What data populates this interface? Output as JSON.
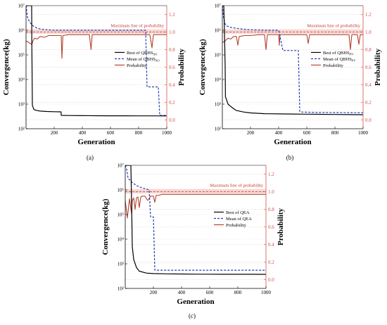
{
  "chart_data": [
    {
      "type": "line",
      "panel_label": "(a)",
      "xlabel": "Generation",
      "ylabel": "Convergence(kg)",
      "y2label": "Probability",
      "xlim": [
        0,
        1000
      ],
      "ylim_log10": [
        2,
        7
      ],
      "y2lim": [
        -0.1,
        1.3
      ],
      "x_ticks": [
        "200",
        "400",
        "600",
        "800",
        "1000"
      ],
      "y_ticks": [
        "10²",
        "10³",
        "10⁴",
        "10⁵",
        "10⁶",
        "10⁷"
      ],
      "y2_ticks": [
        "0.0",
        "0.2",
        "0.4",
        "0.6",
        "0.8",
        "1.0",
        "1.2"
      ],
      "max_line_label": "Maximum line of probability",
      "max_line_value": 1.0,
      "legend": [
        "Best of QBHS_SO",
        "Mean of QBHS_SO",
        "Probability"
      ],
      "series": [
        {
          "name": "Best of QBHS_SO",
          "color": "#000000",
          "dash": false,
          "axis": "left",
          "x": [
            0,
            10,
            20,
            30,
            40,
            41,
            45,
            55,
            70,
            100,
            150,
            200,
            249,
            250,
            300,
            400,
            500,
            600,
            700,
            800,
            900,
            1000
          ],
          "y": [
            10000000,
            10000000,
            10000000,
            10000000,
            10000000,
            400000,
            900,
            620,
            560,
            520,
            500,
            490,
            485,
            350,
            345,
            340,
            338,
            336,
            335,
            334,
            333,
            332
          ]
        },
        {
          "name": "Mean of QBHS_SO",
          "color": "#1f3fb4",
          "dash": true,
          "axis": "left",
          "x": [
            0,
            10,
            20,
            30,
            50,
            80,
            110,
            150,
            200,
            300,
            400,
            500,
            600,
            700,
            800,
            850,
            860,
            940,
            950,
            1000
          ],
          "y": [
            10000000,
            3500000,
            2500000,
            2000000,
            1500000,
            1200000,
            1100000,
            1050000,
            1000000,
            1000000,
            1000000,
            1000000,
            1000000,
            1000000,
            1000000,
            1000000,
            5000,
            5000,
            350,
            350
          ]
        },
        {
          "name": "Probability",
          "color": "#b5432f",
          "dash": false,
          "axis": "right",
          "x": [
            0,
            20,
            40,
            50,
            60,
            80,
            100,
            130,
            160,
            200,
            230,
            250,
            255,
            262,
            300,
            350,
            400,
            450,
            462,
            470,
            500,
            550,
            600,
            700,
            800,
            880,
            895,
            905,
            950,
            1000
          ],
          "y": [
            0.9,
            0.88,
            0.86,
            0.9,
            0.93,
            0.92,
            0.95,
            0.94,
            0.96,
            0.96,
            0.96,
            0.96,
            0.7,
            0.96,
            0.97,
            0.97,
            0.97,
            0.97,
            0.8,
            0.97,
            0.97,
            0.97,
            0.97,
            0.97,
            0.97,
            0.97,
            0.82,
            0.97,
            0.97,
            0.97
          ]
        }
      ]
    },
    {
      "type": "line",
      "panel_label": "(b)",
      "xlabel": "Generation",
      "ylabel": "Convergence(kg)",
      "y2label": "Probability",
      "xlim": [
        0,
        1000
      ],
      "ylim_log10": [
        2,
        7
      ],
      "y2lim": [
        -0.1,
        1.3
      ],
      "x_ticks": [
        "200",
        "400",
        "600",
        "800",
        "1000"
      ],
      "y_ticks": [
        "10²",
        "10³",
        "10⁴",
        "10⁵",
        "10⁶",
        "10⁷"
      ],
      "y2_ticks": [
        "0.0",
        "0.2",
        "0.4",
        "0.6",
        "0.8",
        "1.0",
        "1.2"
      ],
      "max_line_label": "Maximum line of probability",
      "max_line_value": 1.0,
      "legend": [
        "Best of QBHS_PV",
        "Mean of QBHS_PV",
        "Probability"
      ],
      "series": [
        {
          "name": "Best of QBHS_PV",
          "color": "#000000",
          "dash": false,
          "axis": "left",
          "x": [
            0,
            10,
            15,
            20,
            22,
            30,
            40,
            60,
            80,
            100,
            150,
            200,
            300,
            400,
            500,
            600,
            700,
            800,
            900,
            1000
          ],
          "y": [
            10000000,
            10000000,
            1000000,
            30000,
            2000,
            1500,
            1000,
            800,
            650,
            550,
            480,
            440,
            410,
            400,
            395,
            390,
            385,
            380,
            375,
            370
          ]
        },
        {
          "name": "Mean of QBHS_PV",
          "color": "#1f3fb4",
          "dash": true,
          "axis": "left",
          "x": [
            0,
            10,
            20,
            30,
            60,
            100,
            150,
            200,
            300,
            400,
            420,
            430,
            500,
            540,
            550,
            560,
            600,
            700,
            800,
            900,
            1000
          ],
          "y": [
            10000000,
            3000000,
            1800000,
            1500000,
            1300000,
            1200000,
            1100000,
            1050000,
            1000000,
            1000000,
            300000,
            150000,
            150000,
            150000,
            500,
            480,
            470,
            460,
            455,
            450,
            445
          ]
        },
        {
          "name": "Probability",
          "color": "#b5432f",
          "dash": false,
          "axis": "right",
          "x": [
            0,
            20,
            40,
            60,
            80,
            100,
            110,
            120,
            160,
            200,
            260,
            300,
            310,
            320,
            350,
            400,
            405,
            410,
            450,
            500,
            600,
            610,
            620,
            700,
            800,
            900,
            910,
            920,
            960,
            970,
            980,
            1000
          ],
          "y": [
            0.88,
            0.9,
            0.93,
            0.92,
            0.95,
            0.95,
            0.85,
            0.95,
            0.96,
            0.96,
            0.97,
            0.97,
            0.8,
            0.97,
            0.97,
            0.97,
            0.85,
            0.97,
            0.97,
            0.97,
            0.97,
            0.87,
            0.97,
            0.97,
            0.97,
            0.97,
            0.8,
            0.97,
            0.97,
            0.86,
            0.97,
            0.97
          ]
        }
      ]
    },
    {
      "type": "line",
      "panel_label": "(c)",
      "xlabel": "Generation",
      "ylabel": "Convergence(kg)",
      "y2label": "Probability",
      "xlim": [
        0,
        1000
      ],
      "ylim_log10": [
        2,
        7
      ],
      "y2lim": [
        -0.1,
        1.3
      ],
      "x_ticks": [
        "200",
        "400",
        "600",
        "800",
        "1000"
      ],
      "y_ticks": [
        "10²",
        "10³",
        "10⁴",
        "10⁵",
        "10⁶",
        "10⁷"
      ],
      "y2_ticks": [
        "0.0",
        "0.2",
        "0.4",
        "0.6",
        "0.8",
        "1.0",
        "1.2"
      ],
      "max_line_label": "Maximum line of probability",
      "max_line_value": 1.0,
      "legend": [
        "Best of QEA",
        "Mean of QEA",
        "Probability"
      ],
      "series": [
        {
          "name": "Best of QEA",
          "color": "#000000",
          "dash": false,
          "axis": "left",
          "x": [
            0,
            20,
            30,
            40,
            45,
            50,
            60,
            80,
            100,
            150,
            200,
            300,
            400,
            500,
            600,
            700,
            800,
            900,
            1000
          ],
          "y": [
            10000000,
            10000000,
            10000000,
            10000000,
            300000,
            5000,
            1500,
            700,
            500,
            420,
            400,
            390,
            385,
            380,
            378,
            376,
            375,
            374,
            373
          ]
        },
        {
          "name": "Mean of QEA",
          "color": "#1f3fb4",
          "dash": true,
          "axis": "left",
          "x": [
            0,
            10,
            20,
            50,
            80,
            120,
            150,
            170,
            180,
            200,
            210,
            220,
            300,
            400,
            500,
            600,
            700,
            800,
            900,
            1000
          ],
          "y": [
            10000000,
            7000000,
            3000000,
            2000000,
            1500000,
            1200000,
            1100000,
            1000000,
            80000,
            80000,
            560,
            550,
            550,
            550,
            550,
            550,
            550,
            550,
            550,
            550
          ]
        },
        {
          "name": "Probability",
          "color": "#b5432f",
          "dash": false,
          "axis": "right",
          "x": [
            0,
            15,
            30,
            45,
            50,
            60,
            70,
            80,
            90,
            100,
            110,
            120,
            140,
            160,
            180,
            200,
            210,
            220,
            230,
            240,
            260,
            300,
            400,
            500,
            600,
            700,
            800,
            900,
            1000
          ],
          "y": [
            0.9,
            0.7,
            0.92,
            0.75,
            0.9,
            0.93,
            0.8,
            0.93,
            0.94,
            0.82,
            0.94,
            0.95,
            0.95,
            0.9,
            0.95,
            0.95,
            0.88,
            0.96,
            0.96,
            0.96,
            0.97,
            0.97,
            0.97,
            0.97,
            0.97,
            0.97,
            0.97,
            0.97,
            0.97
          ]
        }
      ]
    }
  ]
}
